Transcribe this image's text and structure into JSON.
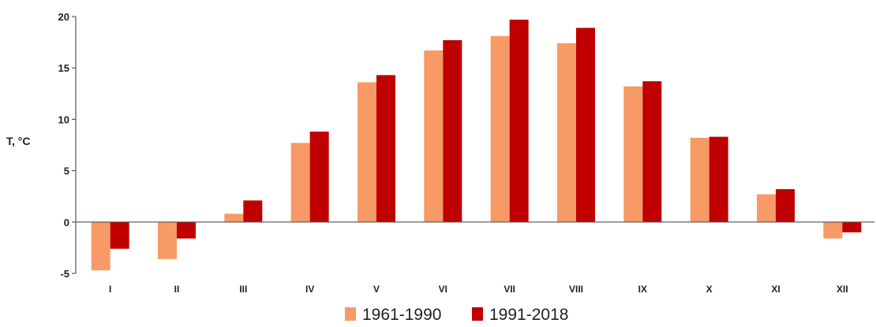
{
  "chart_data": {
    "type": "bar",
    "title": "",
    "xlabel": "",
    "ylabel": "T, °C",
    "ylim": [
      -5,
      20
    ],
    "yticks": [
      -5,
      0,
      5,
      10,
      15,
      20
    ],
    "grid": false,
    "legend_position": "bottom",
    "categories": [
      "I",
      "II",
      "III",
      "IV",
      "V",
      "VI",
      "VII",
      "VIII",
      "IX",
      "X",
      "XI",
      "XII"
    ],
    "series": [
      {
        "name": "1961-1990",
        "color": "#f79a66",
        "values": [
          -4.7,
          -3.6,
          0.8,
          7.7,
          13.6,
          16.7,
          18.1,
          17.4,
          13.2,
          8.2,
          2.7,
          -1.6
        ]
      },
      {
        "name": "1991-2018",
        "color": "#c00000",
        "values": [
          -2.6,
          -1.6,
          2.1,
          8.8,
          14.3,
          17.7,
          19.7,
          18.9,
          13.7,
          8.3,
          3.2,
          -1.0
        ]
      }
    ]
  }
}
